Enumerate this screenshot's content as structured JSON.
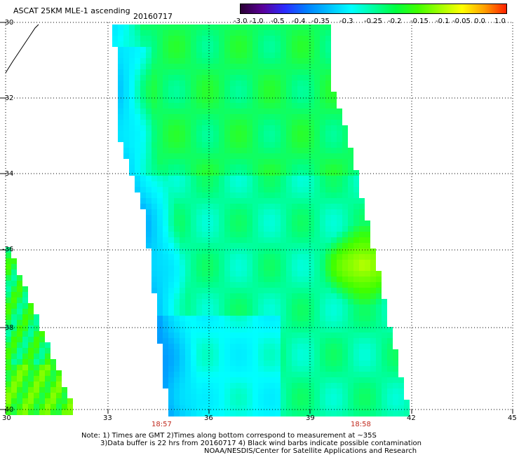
{
  "title": "ASCAT 25KM MLE-1 ascending",
  "date": "20160717",
  "colorbar": {
    "labels": [
      "-3.0",
      "-1.0",
      "-0.5",
      "-0.4",
      "-0.35",
      "-0.3",
      "-0.25",
      "-0.2",
      "-0.15",
      "-0.1",
      "-0.05",
      "0.0",
      "1.0"
    ],
    "colors": [
      "#2a0033",
      "#5a0099",
      "#2b2bff",
      "#0080ff",
      "#00c0ff",
      "#00ffff",
      "#00ffa0",
      "#00ff40",
      "#40ff00",
      "#a0ff00",
      "#ffff00",
      "#ffa000",
      "#ff2000"
    ]
  },
  "y_ticks": [
    "-30",
    "-32",
    "-34",
    "-36",
    "-38",
    "-40"
  ],
  "x_ticks": [
    "30",
    "33",
    "36",
    "39",
    "42",
    "45"
  ],
  "times": [
    "18:57",
    "18:58"
  ],
  "notes": [
    "Note: 1) Times are GMT 2)Times along bottom correspond to measurement at ~35S",
    "3)Data buffer is 22 hrs from 20160717 4) Black wind barbs indicate possible contamination",
    "NOAA/NESDIS/Center for Satellite Applications and Research"
  ]
}
